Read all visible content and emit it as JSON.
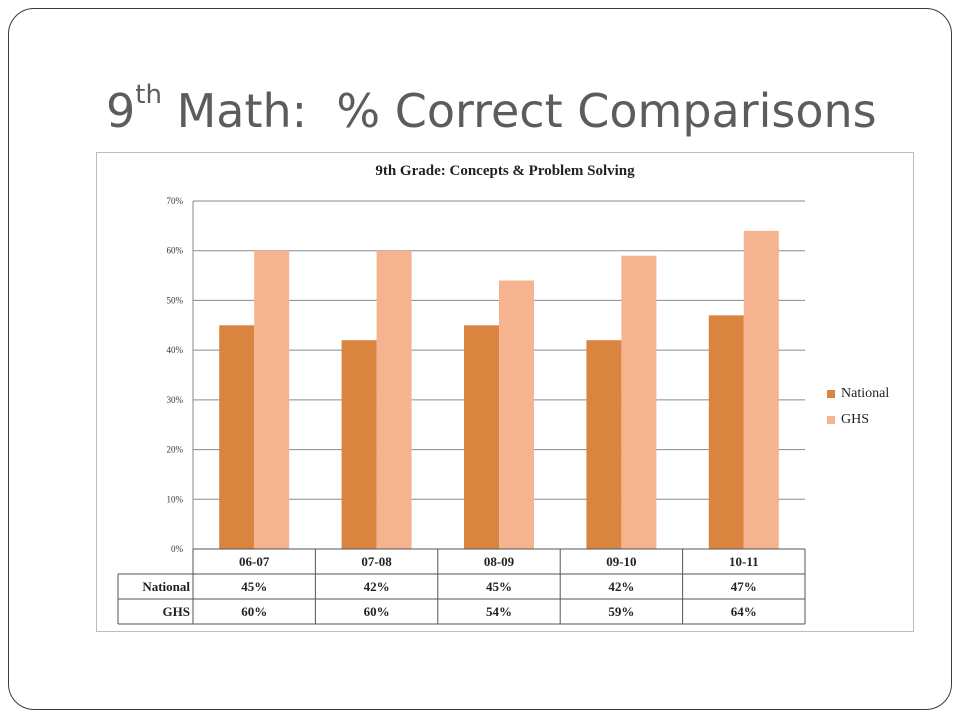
{
  "slide": {
    "title_main": "9",
    "title_sup": "th",
    "title_rest": " Math:  % Correct Comparisons"
  },
  "colors": {
    "National": "#d9843f",
    "GHS": "#f6b38f"
  },
  "chart_data": {
    "type": "bar",
    "title": "9th Grade: Concepts & Problem Solving",
    "categories": [
      "06-07",
      "07-08",
      "08-09",
      "09-10",
      "10-11"
    ],
    "series": [
      {
        "name": "National",
        "values": [
          45,
          42,
          45,
          42,
          47
        ],
        "labels": [
          "45%",
          "42%",
          "45%",
          "42%",
          "47%"
        ]
      },
      {
        "name": "GHS",
        "values": [
          60,
          60,
          54,
          59,
          64
        ],
        "labels": [
          "60%",
          "60%",
          "54%",
          "59%",
          "64%"
        ]
      }
    ],
    "yticks": [
      "0%",
      "10%",
      "20%",
      "30%",
      "40%",
      "50%",
      "60%",
      "70%"
    ],
    "ylim": [
      0,
      70
    ],
    "grid": true,
    "legend": "right",
    "data_table": true
  }
}
